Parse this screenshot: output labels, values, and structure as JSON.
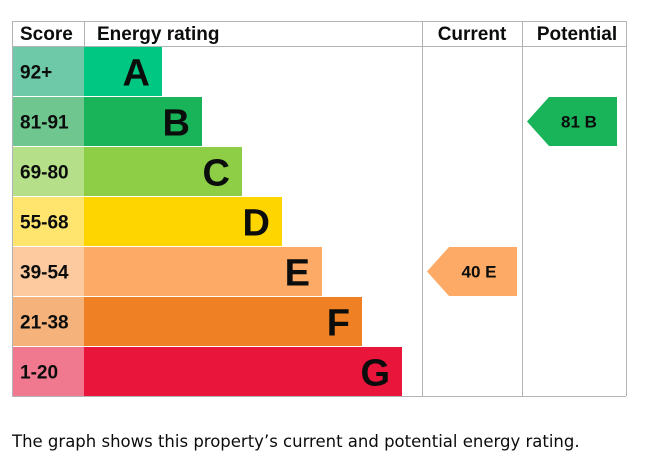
{
  "chart_data": {
    "type": "table",
    "headers": {
      "score": "Score",
      "rating": "Energy rating",
      "current": "Current",
      "potential": "Potential"
    },
    "bands": [
      {
        "score": "92+",
        "letter": "A",
        "color": "#00c781"
      },
      {
        "score": "81-91",
        "letter": "B",
        "color": "#19b459"
      },
      {
        "score": "69-80",
        "letter": "C",
        "color": "#8dce46"
      },
      {
        "score": "55-68",
        "letter": "D",
        "color": "#ffd500"
      },
      {
        "score": "39-54",
        "letter": "E",
        "color": "#fcaa65"
      },
      {
        "score": "21-38",
        "letter": "F",
        "color": "#ef8023"
      },
      {
        "score": "1-20",
        "letter": "G",
        "color": "#e9153b"
      }
    ],
    "score_colors": [
      "#6ec9a8",
      "#6fc78f",
      "#b6df89",
      "#ffe46e",
      "#fdcaa0",
      "#f5b27b",
      "#f0798f"
    ],
    "current": {
      "value": 40,
      "letter": "E",
      "label": "40 E",
      "color": "#fcaa65"
    },
    "potential": {
      "value": 81,
      "letter": "B",
      "label": "81 B",
      "color": "#19b459"
    }
  },
  "caption": "The graph shows this property’s current and potential energy rating."
}
